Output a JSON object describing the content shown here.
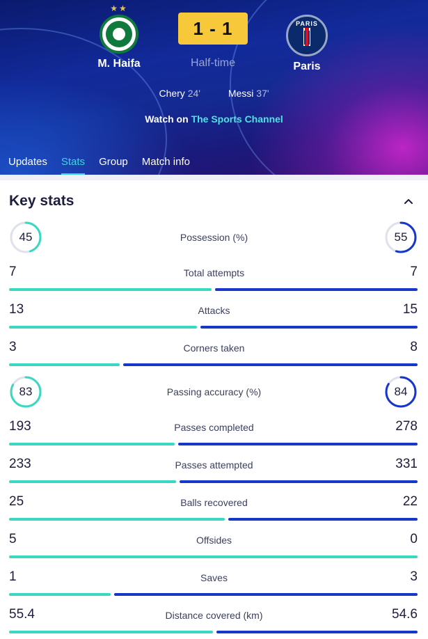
{
  "match": {
    "home_team": "M. Haifa",
    "away_team": "Paris",
    "score": "1 - 1",
    "status": "Half-time",
    "home_stars": "★★",
    "away_crest_text": "PARIS",
    "scorers": [
      {
        "name": "Chery",
        "minute": "24'"
      },
      {
        "name": "Messi",
        "minute": "37'"
      }
    ],
    "watch_prefix": "Watch on",
    "channel": "The Sports Channel"
  },
  "tabs": [
    "Updates",
    "Stats",
    "Group",
    "Match info"
  ],
  "active_tab": "Stats",
  "key_stats": {
    "title": "Key stats",
    "rows": [
      {
        "label": "Possession (%)",
        "home": "45",
        "away": "55",
        "home_num": 45,
        "away_num": 55,
        "ring": true
      },
      {
        "label": "Total attempts",
        "home": "7",
        "away": "7",
        "home_num": 7,
        "away_num": 7
      },
      {
        "label": "Attacks",
        "home": "13",
        "away": "15",
        "home_num": 13,
        "away_num": 15
      },
      {
        "label": "Corners taken",
        "home": "3",
        "away": "8",
        "home_num": 3,
        "away_num": 8
      },
      {
        "label": "Passing accuracy (%)",
        "home": "83",
        "away": "84",
        "home_num": 83,
        "away_num": 84,
        "ring": true
      },
      {
        "label": "Passes completed",
        "home": "193",
        "away": "278",
        "home_num": 193,
        "away_num": 278
      },
      {
        "label": "Passes attempted",
        "home": "233",
        "away": "331",
        "home_num": 233,
        "away_num": 331
      },
      {
        "label": "Balls recovered",
        "home": "25",
        "away": "22",
        "home_num": 25,
        "away_num": 22
      },
      {
        "label": "Offsides",
        "home": "5",
        "away": "0",
        "home_num": 5,
        "away_num": 0
      },
      {
        "label": "Saves",
        "home": "1",
        "away": "3",
        "home_num": 1,
        "away_num": 3
      },
      {
        "label": "Distance covered (km)",
        "home": "55.4",
        "away": "54.6",
        "home_num": 55.4,
        "away_num": 54.6
      }
    ]
  },
  "colors": {
    "home_accent": "#3ad8c2",
    "away_accent": "#1638c8",
    "score_bg": "#f6c83a",
    "channel": "#4fe3e0"
  }
}
